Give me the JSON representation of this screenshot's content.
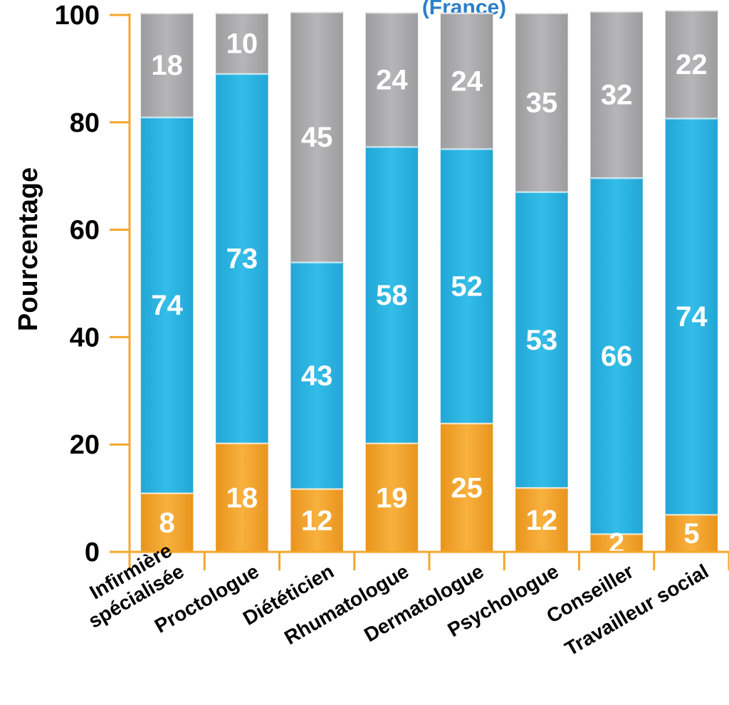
{
  "chart_data": {
    "type": "bar",
    "stacked": true,
    "title": "(France)",
    "xlabel": "",
    "ylabel": "Pourcentage",
    "ylim": [
      0,
      100
    ],
    "yticks": [
      "0",
      "20",
      "40",
      "60",
      "80",
      "100"
    ],
    "grid": false,
    "categories": [
      [
        "Infirmière",
        "spécialisée"
      ],
      [
        "Proctologue"
      ],
      [
        "Diététicien"
      ],
      [
        "Rhumatologue"
      ],
      [
        "Dermatologue"
      ],
      [
        "Psychologue"
      ],
      [
        "Conseiller"
      ],
      [
        "Travailleur social"
      ]
    ],
    "series": [
      {
        "values": [
          8,
          18,
          12,
          19,
          25,
          12,
          2,
          5
        ],
        "heights": [
          11,
          20.3,
          11.8,
          20.3,
          24,
          12,
          3.4,
          7
        ],
        "color": "#F4A62A"
      },
      {
        "values": [
          74,
          73,
          43,
          58,
          52,
          53,
          66,
          74
        ],
        "heights": [
          70,
          68.8,
          42.2,
          55.2,
          51.1,
          55.1,
          66.3,
          73.8
        ],
        "color": "#2EB6E2"
      },
      {
        "values": [
          18,
          10,
          45,
          24,
          24,
          35,
          32,
          22
        ],
        "heights": [
          19.4,
          11.3,
          46.6,
          25,
          25.3,
          33.3,
          31,
          20.1
        ],
        "color": "#A9A9AB"
      }
    ],
    "colors": {
      "axis": "#F4A62A",
      "title": "#2A7FC9",
      "label": "#FFFFFF"
    }
  }
}
